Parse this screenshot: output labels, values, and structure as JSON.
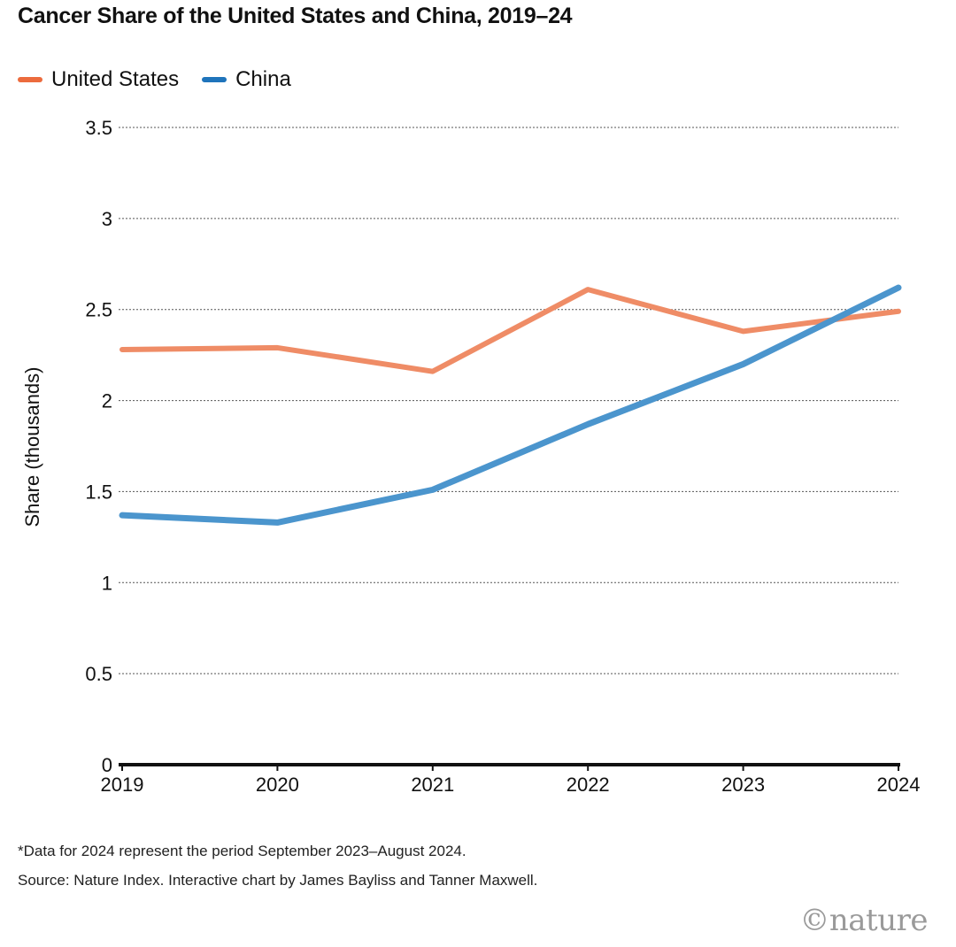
{
  "header": {
    "title": "Cancer Share of the United States and China, 2019–24"
  },
  "footer": {
    "note": "*Data for 2024 represent the period September 2023–August 2024.",
    "source": "Source: Nature Index. Interactive chart by James Bayliss and Tanner Maxwell.",
    "logo_text": "©nature"
  },
  "chart_data": {
    "type": "line",
    "title": "Cancer Share of the United States and China, 2019–24",
    "xlabel": "",
    "ylabel": "Share (thousands)",
    "x": [
      "2019",
      "2020",
      "2021",
      "2022",
      "2023",
      "2024"
    ],
    "ylim": [
      0,
      3.5
    ],
    "yticks": [
      "0",
      "0.5",
      "1",
      "1.5",
      "2",
      "2.5",
      "3",
      "3.5"
    ],
    "grid": true,
    "legend_position": "top-left",
    "series": [
      {
        "name": "United States",
        "color": "#ef8c66",
        "legend_color": "#ec6b3d",
        "values": [
          2.28,
          2.29,
          2.16,
          2.61,
          2.38,
          2.49
        ]
      },
      {
        "name": "China",
        "color": "#4b95cd",
        "legend_color": "#1f74bb",
        "values": [
          1.37,
          1.33,
          1.51,
          1.87,
          2.2,
          2.62
        ]
      }
    ]
  }
}
